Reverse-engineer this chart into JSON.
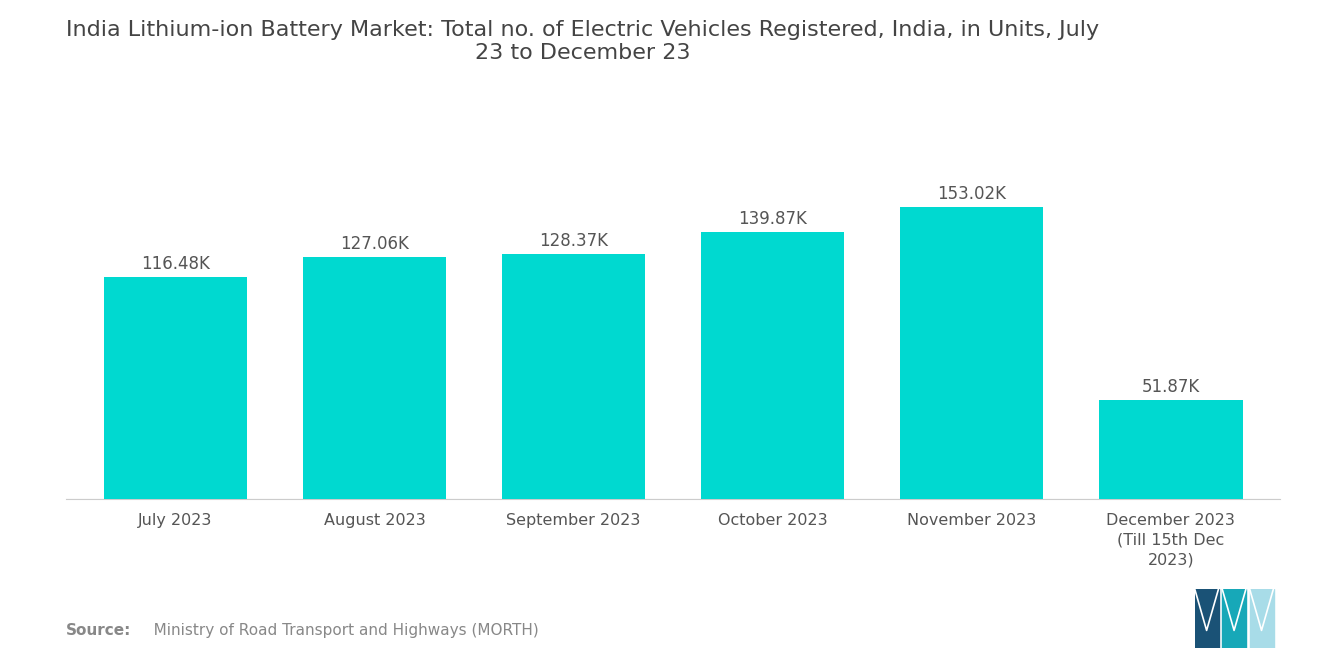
{
  "title": "India Lithium-ion Battery Market: Total no. of Electric Vehicles Registered, India, in Units, July\n23 to December 23",
  "categories": [
    "July 2023",
    "August 2023",
    "September 2023",
    "October 2023",
    "November 2023",
    "December 2023\n(Till 15th Dec\n2023)"
  ],
  "values": [
    116480,
    127060,
    128370,
    139870,
    153020,
    51870
  ],
  "labels": [
    "116.48K",
    "127.06K",
    "128.37K",
    "139.87K",
    "153.02K",
    "51.87K"
  ],
  "bar_color": "#00D9D0",
  "background_color": "#FFFFFF",
  "source_bold": "Source:",
  "source_rest": "   Ministry of Road Transport and Highways (MORTH)",
  "title_fontsize": 16,
  "label_fontsize": 12,
  "tick_fontsize": 11.5,
  "source_fontsize": 11,
  "ylim": [
    0,
    185000
  ]
}
